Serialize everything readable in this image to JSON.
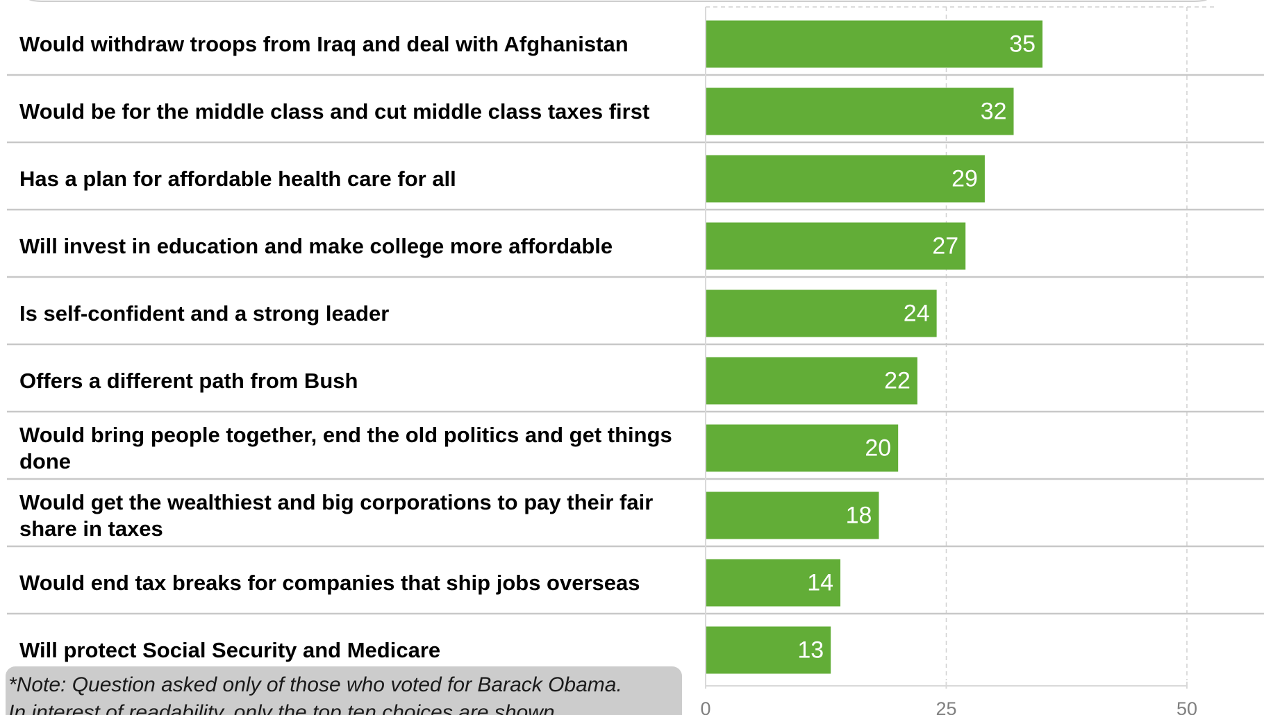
{
  "chart_data": {
    "type": "bar",
    "orientation": "horizontal",
    "categories": [
      [
        "Would withdraw troops from Iraq and deal with Afghanistan"
      ],
      [
        "Would be for the middle class and cut middle class taxes first"
      ],
      [
        "Has a plan for affordable health care for all"
      ],
      [
        "Will invest in education and make college more affordable"
      ],
      [
        "Is self-confident and a strong leader"
      ],
      [
        "Offers a different path from Bush"
      ],
      [
        "Would bring people together, end the old politics and get things",
        "done"
      ],
      [
        "Would get the wealthiest and big corporations to pay their fair",
        "share in taxes"
      ],
      [
        "Would end tax breaks for companies that ship jobs overseas"
      ],
      [
        "Will protect Social Security and Medicare"
      ]
    ],
    "values": [
      35,
      32,
      29,
      27,
      24,
      22,
      20,
      18,
      14,
      13
    ],
    "xlim": [
      0,
      50
    ],
    "ticks": [
      0,
      25,
      50
    ],
    "tick_labels": [
      "0",
      "25",
      "50"
    ],
    "bar_color": "#62ad37",
    "value_label_color": "#ffffff",
    "grid": "dashed vertical gridlines",
    "legend": "none"
  },
  "note": {
    "lines": [
      "*Note: Question asked only of those who voted for Barack Obama.",
      "In interest of readability, only the top ten choices are shown."
    ]
  }
}
